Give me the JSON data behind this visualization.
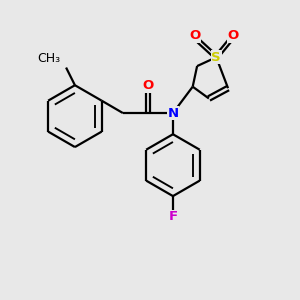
{
  "bg_color": "#e8e8e8",
  "atom_colors": {
    "O": "#ff0000",
    "N": "#0000ff",
    "S": "#cccc00",
    "F": "#cc00cc",
    "C": "#000000"
  },
  "line_color": "#000000",
  "line_width": 1.6,
  "font_size_atom": 9.5,
  "fig_size": [
    3.0,
    3.0
  ],
  "dpi": 100
}
